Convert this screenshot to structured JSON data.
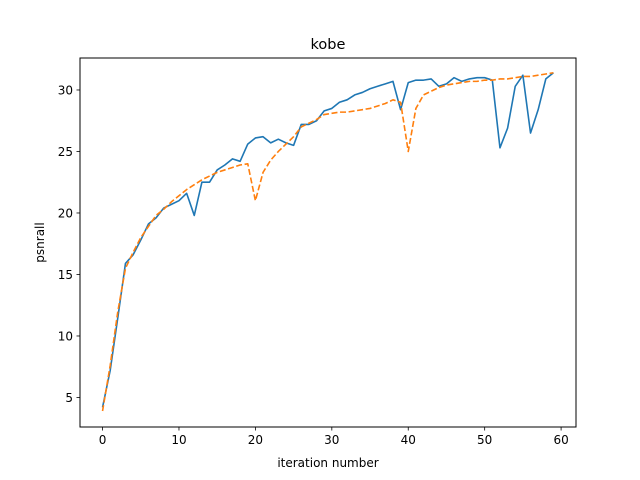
{
  "chart_data": {
    "type": "line",
    "title": "kobe",
    "xlabel": "iteration number",
    "ylabel": "psnrall",
    "xlim": [
      -2.95,
      61.95
    ],
    "ylim": [
      2.6,
      32.6
    ],
    "xticks": [
      0,
      10,
      20,
      30,
      40,
      50,
      60
    ],
    "yticks": [
      5,
      10,
      15,
      20,
      25,
      30
    ],
    "grid": false,
    "series": [
      {
        "color": "#1f77b4",
        "style": "solid",
        "x": [
          0,
          1,
          2,
          3,
          4,
          5,
          6,
          7,
          8,
          9,
          10,
          11,
          12,
          13,
          14,
          15,
          16,
          17,
          18,
          19,
          20,
          21,
          22,
          23,
          24,
          25,
          26,
          27,
          28,
          29,
          30,
          31,
          32,
          33,
          34,
          35,
          36,
          37,
          38,
          39,
          40,
          41,
          42,
          43,
          44,
          45,
          46,
          47,
          48,
          49,
          50,
          51,
          52,
          53,
          54,
          55,
          56,
          57,
          58,
          59
        ],
        "values": [
          4.2,
          7.2,
          11.5,
          15.9,
          16.6,
          17.8,
          19.1,
          19.6,
          20.4,
          20.7,
          21.0,
          21.6,
          19.8,
          22.5,
          22.5,
          23.5,
          23.9,
          24.4,
          24.2,
          25.6,
          26.1,
          26.2,
          25.7,
          26.0,
          25.7,
          25.5,
          27.2,
          27.2,
          27.5,
          28.3,
          28.5,
          29.0,
          29.2,
          29.6,
          29.8,
          30.1,
          30.3,
          30.5,
          30.7,
          28.4,
          30.6,
          30.8,
          30.8,
          30.9,
          30.3,
          30.5,
          31.0,
          30.7,
          30.9,
          31.0,
          31.0,
          30.8,
          25.3,
          26.9,
          30.3,
          31.2,
          26.5,
          28.4,
          30.9,
          31.4
        ]
      },
      {
        "color": "#ff7f0e",
        "style": "dashed",
        "x": [
          0,
          1,
          2,
          3,
          4,
          5,
          6,
          7,
          8,
          9,
          10,
          11,
          12,
          13,
          14,
          15,
          16,
          17,
          18,
          19,
          20,
          21,
          22,
          23,
          24,
          25,
          26,
          27,
          28,
          29,
          30,
          31,
          32,
          33,
          34,
          35,
          36,
          37,
          38,
          39,
          40,
          41,
          42,
          43,
          44,
          45,
          46,
          47,
          48,
          49,
          50,
          51,
          52,
          53,
          54,
          55,
          56,
          57,
          58,
          59
        ],
        "values": [
          3.9,
          7.6,
          12.0,
          15.5,
          16.8,
          18.0,
          18.9,
          19.8,
          20.3,
          20.9,
          21.4,
          21.9,
          22.3,
          22.7,
          23.0,
          23.3,
          23.5,
          23.7,
          23.9,
          24.0,
          21.0,
          23.3,
          24.3,
          25.0,
          25.6,
          26.2,
          27.0,
          27.3,
          27.6,
          28.0,
          28.1,
          28.2,
          28.2,
          28.3,
          28.4,
          28.5,
          28.7,
          28.9,
          29.2,
          29.0,
          25.0,
          28.5,
          29.6,
          29.9,
          30.2,
          30.4,
          30.5,
          30.6,
          30.7,
          30.7,
          30.8,
          30.8,
          30.9,
          30.9,
          31.0,
          31.1,
          31.1,
          31.2,
          31.3,
          31.4
        ]
      }
    ]
  }
}
